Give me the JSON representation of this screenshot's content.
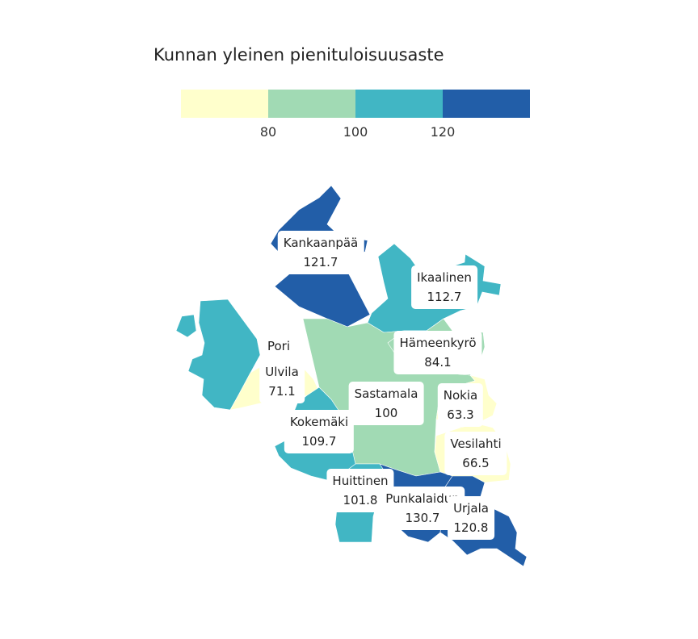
{
  "title": "Kunnan yleinen pienituloisuusaste",
  "legend": {
    "colors": [
      "#ffffcc",
      "#a1dab4",
      "#41b6c4",
      "#225ea8"
    ],
    "ticks": [
      "80",
      "100",
      "120"
    ]
  },
  "municipalities": [
    {
      "name": "Kankaanpää",
      "value": "121.7",
      "color": "#225ea8"
    },
    {
      "name": "Ikaalinen",
      "value": "112.7",
      "color": "#41b6c4"
    },
    {
      "name": "Pori",
      "value": "",
      "color": "#41b6c4"
    },
    {
      "name": "Hämeenkyrö",
      "value": "84.1",
      "color": "#a1dab4"
    },
    {
      "name": "Ulvila",
      "value": "71.1",
      "color": "#ffffcc"
    },
    {
      "name": "Sastamala",
      "value": "100",
      "color": "#a1dab4"
    },
    {
      "name": "Nokia",
      "value": "63.3",
      "color": "#ffffcc"
    },
    {
      "name": "Kokemäki",
      "value": "109.7",
      "color": "#41b6c4"
    },
    {
      "name": "Vesilahti",
      "value": "66.5",
      "color": "#ffffcc"
    },
    {
      "name": "Huittinen",
      "value": "101.8",
      "color": "#41b6c4"
    },
    {
      "name": "Punkalaidun",
      "value": "130.7",
      "color": "#225ea8"
    },
    {
      "name": "Urjala",
      "value": "120.8",
      "color": "#225ea8"
    }
  ]
}
